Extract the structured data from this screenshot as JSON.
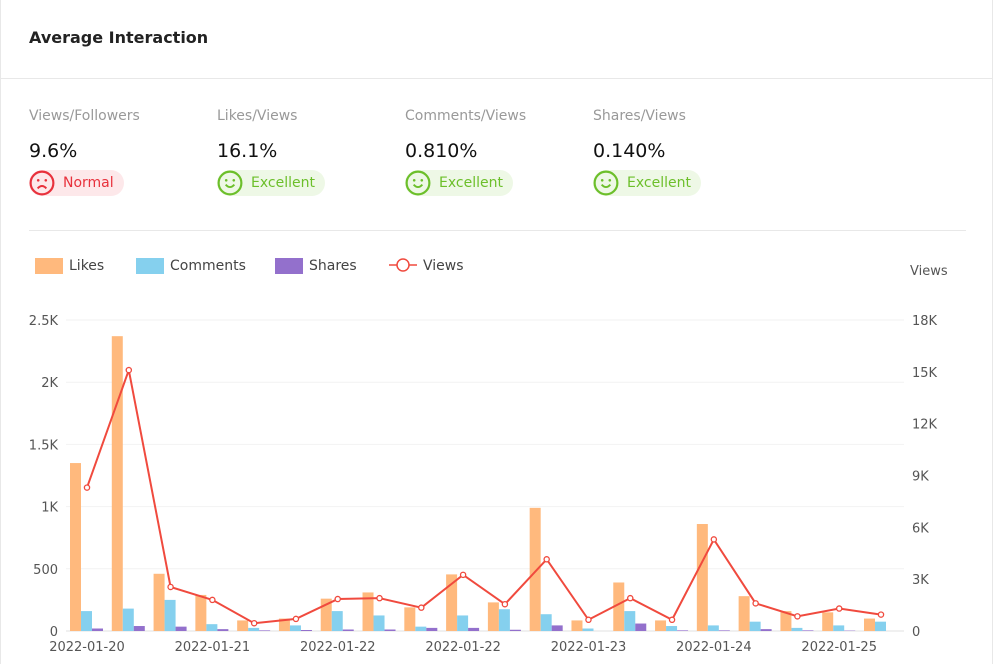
{
  "header": {
    "title": "Average Interaction"
  },
  "metrics": [
    {
      "label": "Views/Followers",
      "value": "9.6%",
      "status": "Normal",
      "icon": "sad-face-icon",
      "color": "#e8313c",
      "bg": "#fde8ea"
    },
    {
      "label": "Likes/Views",
      "value": "16.1%",
      "status": "Excellent",
      "icon": "smile-face-icon",
      "color": "#6cbf2a",
      "bg": "#eef8e6"
    },
    {
      "label": "Comments/Views",
      "value": "0.810%",
      "status": "Excellent",
      "icon": "smile-face-icon",
      "color": "#6cbf2a",
      "bg": "#eef8e6"
    },
    {
      "label": "Shares/Views",
      "value": "0.140%",
      "status": "Excellent",
      "icon": "smile-face-icon",
      "color": "#6cbf2a",
      "bg": "#eef8e6"
    }
  ],
  "chart_data": {
    "type": "bar",
    "legend_position": "top-left",
    "grid": true,
    "x_tick_labels": [
      "2022-01-20",
      "2022-01-21",
      "2022-01-22",
      "2022-01-22",
      "2022-01-23",
      "2022-01-24",
      "2022-01-25"
    ],
    "y_left": {
      "ylim": [
        0,
        2500
      ],
      "ticks": [
        "0",
        "500",
        "1K",
        "1.5K",
        "2K",
        "2.5K"
      ]
    },
    "y_right": {
      "label": "Views",
      "ylim": [
        0,
        18000
      ],
      "ticks": [
        "0",
        "3K",
        "6K",
        "9K",
        "12K",
        "15K",
        "18K"
      ]
    },
    "series": [
      {
        "name": "Likes",
        "type": "bar",
        "axis": "left",
        "color": "#ffb97d",
        "values": [
          1350,
          2370,
          460,
          290,
          85,
          100,
          260,
          310,
          190,
          455,
          230,
          990,
          85,
          390,
          85,
          860,
          280,
          160,
          150,
          100
        ]
      },
      {
        "name": "Comments",
        "type": "bar",
        "axis": "left",
        "color": "#85d0ee",
        "values": [
          160,
          180,
          250,
          55,
          25,
          45,
          160,
          125,
          35,
          125,
          175,
          135,
          20,
          160,
          40,
          45,
          75,
          25,
          45,
          75
        ]
      },
      {
        "name": "Shares",
        "type": "bar",
        "axis": "left",
        "color": "#9370cc",
        "values": [
          20,
          40,
          35,
          15,
          5,
          8,
          12,
          12,
          25,
          25,
          10,
          45,
          0,
          60,
          5,
          5,
          15,
          5,
          3,
          0
        ]
      },
      {
        "name": "Views",
        "type": "line",
        "axis": "right",
        "color": "#f04a3e",
        "values": [
          8300,
          15100,
          2550,
          1800,
          450,
          700,
          1850,
          1900,
          1350,
          3250,
          1550,
          4150,
          650,
          1900,
          650,
          5300,
          1600,
          850,
          1300,
          950
        ]
      }
    ]
  }
}
